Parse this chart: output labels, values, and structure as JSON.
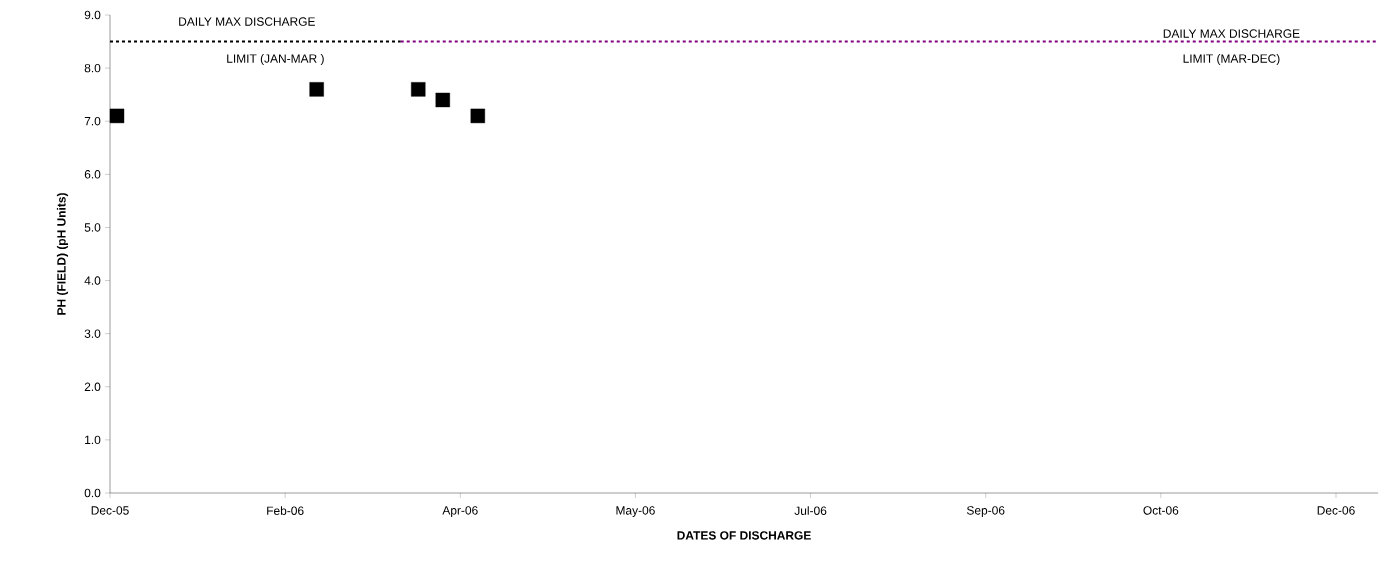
{
  "chart_data": {
    "type": "scatter",
    "xlabel": "DATES OF DISCHARGE",
    "ylabel": "PH (FIELD) (pH Units)",
    "xlim": [
      "2005-12-31",
      "2006-12-28"
    ],
    "xticks": [
      {
        "value": "2005-12-31",
        "label": "Dec-05"
      },
      {
        "value": "2006-02-19",
        "label": "Feb-06"
      },
      {
        "value": "2006-04-10",
        "label": "Apr-06"
      },
      {
        "value": "2006-05-30",
        "label": "May-06"
      },
      {
        "value": "2006-07-19",
        "label": "Jul-06"
      },
      {
        "value": "2006-09-07",
        "label": "Sep-06"
      },
      {
        "value": "2006-10-27",
        "label": "Oct-06"
      },
      {
        "value": "2006-12-16",
        "label": "Dec-06"
      }
    ],
    "ylim": [
      0,
      9
    ],
    "yticks": [
      {
        "value": 0,
        "label": "0.0"
      },
      {
        "value": 1,
        "label": "1.0"
      },
      {
        "value": 2,
        "label": "2.0"
      },
      {
        "value": 3,
        "label": "3.0"
      },
      {
        "value": 4,
        "label": "4.0"
      },
      {
        "value": 5,
        "label": "5.0"
      },
      {
        "value": 6,
        "label": "6.0"
      },
      {
        "value": 7,
        "label": "7.0"
      },
      {
        "value": 8,
        "label": "8.0"
      },
      {
        "value": 9,
        "label": "9.0"
      }
    ],
    "grid": false,
    "series": [
      {
        "color": "#000000",
        "marker": "square",
        "x": [
          "2006-01-02",
          "2006-02-28",
          "2006-03-29",
          "2006-04-05",
          "2006-04-15"
        ],
        "values": [
          7.1,
          7.6,
          7.6,
          7.4,
          7.1
        ]
      },
      {
        "type": "line",
        "color": "#000000",
        "marker": "none",
        "line_style": "dotted",
        "x": [
          "2005-12-31",
          "2006-03-24"
        ],
        "values": [
          8.5,
          8.5
        ]
      },
      {
        "type": "line",
        "color": "#800080",
        "marker": "none",
        "line_style": "dotted",
        "x": [
          "2006-03-24",
          "2006-12-28"
        ],
        "values": [
          8.5,
          8.5
        ]
      }
    ],
    "annotations": [
      "DAILY MAX DISCHARGE",
      "LIMIT (JAN-MAR )",
      "DAILY MAX DISCHARGE",
      "LIMIT (MAR-DEC)"
    ]
  }
}
